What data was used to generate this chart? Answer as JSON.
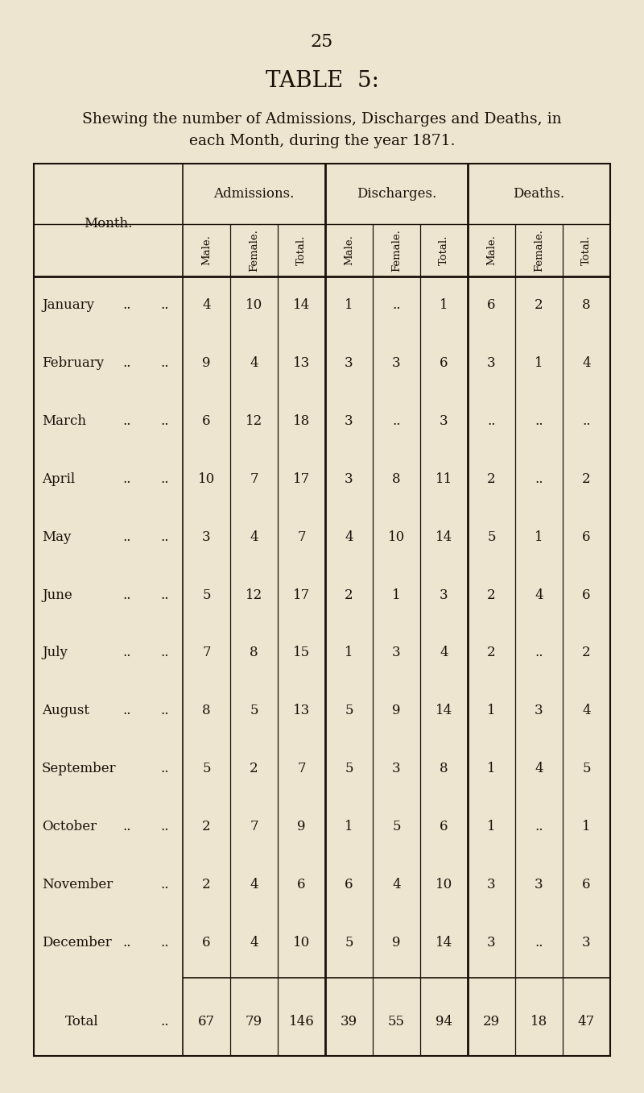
{
  "page_number": "25",
  "title": "TABLE  5:",
  "subtitle_line1": "Shewing the number of Admissions, Discharges and Deaths, in",
  "subtitle_line2": "each Month, during the year 1871.",
  "background_color": "#ede5d0",
  "text_color": "#1a1008",
  "month_names": [
    "January",
    "February",
    "March",
    "April",
    "May",
    "June",
    "July",
    "August",
    "September",
    "October",
    "November",
    "December"
  ],
  "month_dots1": [
    "..",
    "..",
    "..",
    "..",
    "..",
    "..",
    "..",
    "..",
    "",
    "..",
    "",
    ".."
  ],
  "month_dots2": [
    "..",
    "..",
    "..",
    "..",
    "..",
    "..",
    "..",
    "..",
    "..",
    "..",
    "..",
    ".."
  ],
  "data": [
    [
      "4",
      "10",
      "14",
      "1",
      "..",
      "1",
      "6",
      "2",
      "8"
    ],
    [
      "9",
      "4",
      "13",
      "3",
      "3",
      "6",
      "3",
      "1",
      "4"
    ],
    [
      "6",
      "12",
      "18",
      "3",
      "..",
      "3",
      "..",
      "..",
      ".."
    ],
    [
      "10",
      "7",
      "17",
      "3",
      "8",
      "11",
      "2",
      "..",
      "2"
    ],
    [
      "3",
      "4",
      "7",
      "4",
      "10",
      "14",
      "5",
      "1",
      "6"
    ],
    [
      "5",
      "12",
      "17",
      "2",
      "1",
      "3",
      "2",
      "4",
      "6"
    ],
    [
      "7",
      "8",
      "15",
      "1",
      "3",
      "4",
      "2",
      "..",
      "2"
    ],
    [
      "8",
      "5",
      "13",
      "5",
      "9",
      "14",
      "1",
      "3",
      "4"
    ],
    [
      "5",
      "2",
      "7",
      "5",
      "3",
      "8",
      "1",
      "4",
      "5"
    ],
    [
      "2",
      "7",
      "9",
      "1",
      "5",
      "6",
      "1",
      "..",
      "1"
    ],
    [
      "2",
      "4",
      "6",
      "6",
      "4",
      "10",
      "3",
      "3",
      "6"
    ],
    [
      "6",
      "4",
      "10",
      "5",
      "9",
      "14",
      "3",
      "..",
      "3"
    ]
  ],
  "totals": [
    "67",
    "79",
    "146",
    "39",
    "55",
    "94",
    "29",
    "18",
    "47"
  ],
  "col_groups": [
    "Admissions.",
    "Discharges.",
    "Deaths."
  ],
  "col_subheaders": [
    "Male.",
    "Female.",
    "Total.",
    "Male.",
    "Female.",
    "Total.",
    "Male.",
    "Female.",
    "Total."
  ]
}
